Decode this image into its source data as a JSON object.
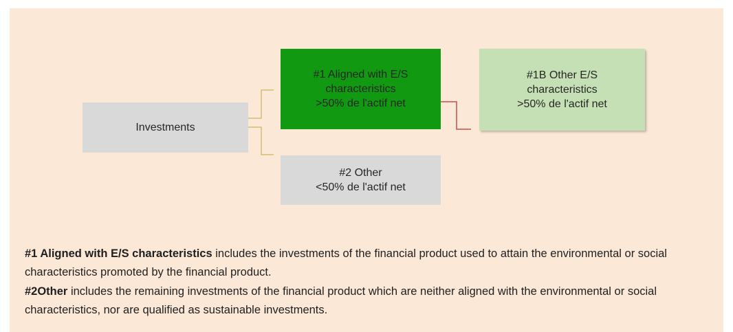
{
  "nodes": [
    {
      "lines": [
        "Investments"
      ]
    },
    {
      "lines": [
        "#1 Aligned with E/S",
        "characteristics",
        ">50% de l'actif net"
      ]
    },
    {
      "lines": [
        "#1B Other E/S",
        "characteristics",
        ">50% de l'actif net"
      ]
    },
    {
      "lines": [
        "#2 Other",
        "<50% de l'actif net"
      ]
    }
  ],
  "paragraphs": [
    {
      "bold": "#1 Aligned with E/S characteristics",
      "text": " includes the investments of the financial product used to attain the environmental or social characteristics promoted by the financial product."
    },
    {
      "bold": "#2Other",
      "text": " includes the remaining investments of the financial product which are neither aligned with the environmental or social characteristics, nor are qualified as sustainable investments."
    }
  ]
}
